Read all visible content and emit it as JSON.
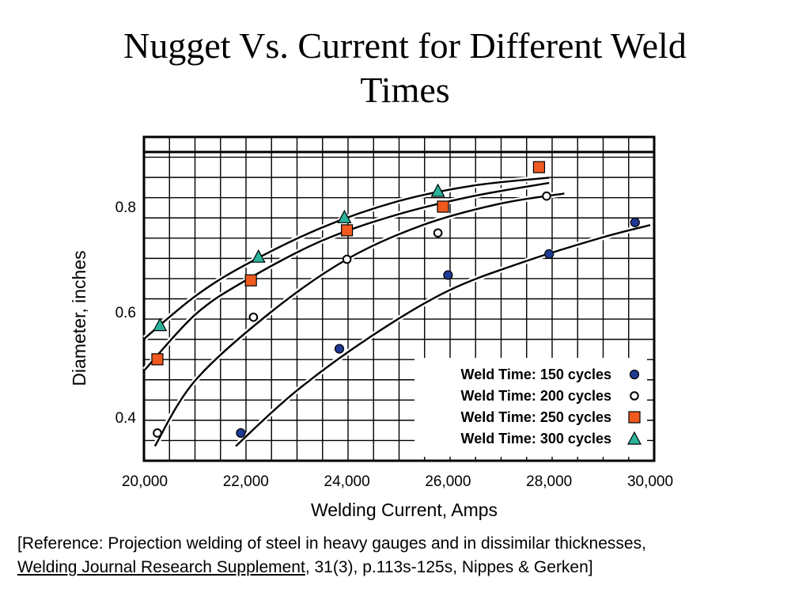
{
  "slide": {
    "title_line1": "Nugget Vs. Current for Different Weld",
    "title_line2": "Times"
  },
  "reference": {
    "prefix": "[Reference:  Projection welding of steel in heavy gauges and in dissimilar thicknesses, ",
    "journal": "Welding Journal Research Supplement",
    "suffix": ", 31(3), p.113s-125s, Nippes & Gerken]"
  },
  "colors": {
    "series_150": "#1f3a93",
    "series_200": "#ffffff",
    "series_250": "#f05a1e",
    "series_300": "#2bb39a",
    "grid": "#000000"
  },
  "chart_data": {
    "type": "scatter",
    "title": "",
    "xlabel": "Welding Current, Amps",
    "ylabel": "Diameter, inches",
    "xlim": [
      20000,
      30000
    ],
    "ylim": [
      0.32,
      0.95
    ],
    "xticks": [
      20000,
      22000,
      24000,
      26000,
      28000,
      30000
    ],
    "xtick_labels": [
      "20,000",
      "22,000",
      "24,000",
      "26,000",
      "28,000",
      "30,000"
    ],
    "yticks": [
      0.4,
      0.6,
      0.8
    ],
    "ytick_labels": [
      "0.4",
      "0.6",
      "0.8"
    ],
    "grid": true,
    "legend_position": "bottom-right",
    "series": [
      {
        "name": "Weld Time: 150 cycles",
        "marker": "filled-circle",
        "x": [
          21900,
          23850,
          26000,
          28000,
          29700
        ],
        "y": [
          0.37,
          0.53,
          0.67,
          0.71,
          0.77
        ],
        "curve_x": [
          21800,
          23000,
          24500,
          26000,
          27500,
          29000,
          30000
        ],
        "curve_y": [
          0.345,
          0.45,
          0.555,
          0.64,
          0.695,
          0.74,
          0.765
        ]
      },
      {
        "name": "Weld Time: 200 cycles",
        "marker": "open-circle",
        "x": [
          20250,
          22150,
          24000,
          25800,
          27950
        ],
        "y": [
          0.37,
          0.59,
          0.7,
          0.75,
          0.82
        ],
        "curve_x": [
          20200,
          21000,
          22500,
          24000,
          25500,
          27000,
          28300
        ],
        "curve_y": [
          0.345,
          0.47,
          0.6,
          0.7,
          0.765,
          0.805,
          0.825
        ]
      },
      {
        "name": "Weld Time: 250 cycles",
        "marker": "filled-square",
        "x": [
          20250,
          22100,
          24000,
          25900,
          27800
        ],
        "y": [
          0.51,
          0.66,
          0.755,
          0.8,
          0.875
        ],
        "curve_x": [
          20000,
          21000,
          22000,
          23500,
          25000,
          26500,
          28000
        ],
        "curve_y": [
          0.49,
          0.595,
          0.66,
          0.735,
          0.785,
          0.82,
          0.845
        ]
      },
      {
        "name": "Weld Time: 300 cycles",
        "marker": "filled-triangle",
        "x": [
          20300,
          22250,
          23950,
          25800
        ],
        "y": [
          0.575,
          0.705,
          0.78,
          0.83
        ],
        "curve_x": [
          20000,
          21000,
          22000,
          23500,
          25000,
          26500,
          28000
        ],
        "curve_y": [
          0.55,
          0.63,
          0.69,
          0.76,
          0.81,
          0.84,
          0.855
        ]
      }
    ]
  }
}
